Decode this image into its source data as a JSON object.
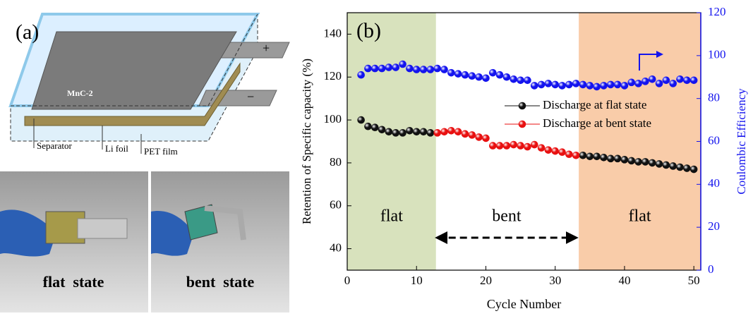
{
  "panel_a": {
    "label": "(a)",
    "cell_label": "MnC-2",
    "plus": "+",
    "minus": "−",
    "layers": [
      "Separator",
      "Li foil",
      "PET film"
    ],
    "photos": [
      "flat  state",
      "bent  state"
    ]
  },
  "chart_data": {
    "type": "scatter",
    "title": "(b)",
    "xlabel": "Cycle Number",
    "ylabel": "Retention of Specific capacity (%)",
    "y2label": "Coulombic Efficiency",
    "x": [
      2,
      3,
      4,
      5,
      6,
      7,
      8,
      9,
      10,
      11,
      12,
      13,
      14,
      15,
      16,
      17,
      18,
      19,
      20,
      21,
      22,
      23,
      24,
      25,
      26,
      27,
      28,
      29,
      30,
      31,
      32,
      33,
      34,
      35,
      36,
      37,
      38,
      39,
      40,
      41,
      42,
      43,
      44,
      45,
      46,
      47,
      48,
      49,
      50
    ],
    "xlim": [
      0,
      51
    ],
    "xticks": [
      0,
      10,
      20,
      30,
      40,
      50
    ],
    "ylim": [
      30,
      150
    ],
    "yticks": [
      40,
      60,
      80,
      100,
      120,
      140
    ],
    "y2lim": [
      0,
      120
    ],
    "y2ticks": [
      0,
      20,
      40,
      60,
      80,
      100,
      120
    ],
    "legend": "upper right",
    "series": [
      {
        "name": "Discharge at flat state",
        "color": "#111111",
        "values": [
          100,
          97,
          96.5,
          95.5,
          94.5,
          94,
          94,
          95,
          94.5,
          94.5,
          94,
          null,
          null,
          null,
          null,
          null,
          null,
          null,
          null,
          null,
          null,
          null,
          null,
          null,
          null,
          null,
          null,
          null,
          null,
          null,
          null,
          null,
          83.5,
          83,
          83,
          82.5,
          82,
          82,
          81.5,
          81,
          80.5,
          80.5,
          80,
          79.5,
          79,
          78.5,
          78,
          77.5,
          77
        ]
      },
      {
        "name": "Discharge at bent state",
        "color": "#e81010",
        "values": [
          null,
          null,
          null,
          null,
          null,
          null,
          null,
          null,
          null,
          null,
          null,
          94,
          94.5,
          95,
          94.5,
          93.5,
          93,
          92,
          91.5,
          88,
          88,
          88,
          88.5,
          88,
          87.5,
          88.5,
          87,
          86,
          85.5,
          85,
          84,
          83.5,
          null,
          null,
          null,
          null,
          null,
          null,
          null,
          null,
          null,
          null,
          null,
          null,
          null,
          null,
          null,
          null,
          null
        ]
      },
      {
        "axis": "y2",
        "color": "#1414ee",
        "values": [
          91,
          94,
          94,
          94,
          94.5,
          94.5,
          96,
          94,
          93.5,
          93.5,
          93.5,
          94,
          93.5,
          92,
          91.5,
          91,
          90.5,
          90,
          89.5,
          92,
          91,
          90,
          89,
          88.5,
          88.5,
          86,
          86.5,
          87,
          86.5,
          86,
          86.5,
          87,
          86.5,
          86,
          85.5,
          86,
          86.5,
          86.5,
          86,
          87.5,
          87,
          88,
          89,
          87,
          88.5,
          87,
          89,
          88.5,
          88.5
        ]
      }
    ],
    "regions": [
      {
        "x": [
          0,
          12.8
        ],
        "color": "#d8e2bd",
        "label": "flat"
      },
      {
        "x": [
          33.4,
          51
        ],
        "color": "#f9cca9",
        "label": "flat"
      }
    ],
    "arrow": {
      "x": [
        13,
        33
      ],
      "label": "bent"
    }
  }
}
